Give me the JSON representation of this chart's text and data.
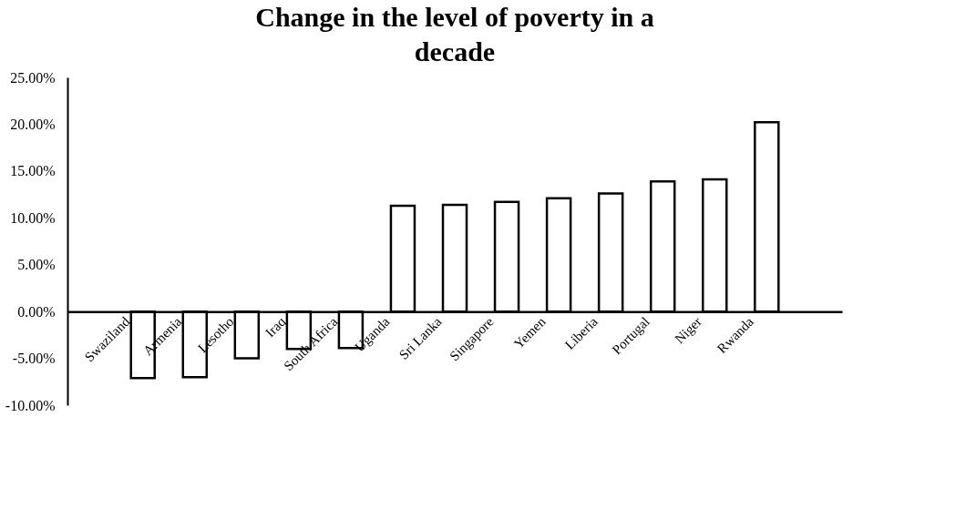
{
  "chart_data": {
    "type": "bar",
    "title": "Change in the level of poverty in a decade",
    "categories": [
      "Swaziland",
      "Armenia",
      "Lesotho",
      "Iraq",
      "South Africa",
      "Uganda",
      "Sri Lanka",
      "Singapore",
      "Yemen",
      "Liberia",
      "Portugal",
      "Niger",
      "Rwanda"
    ],
    "values": [
      -7.1,
      -7.0,
      -5.0,
      -4.0,
      -3.9,
      11.3,
      11.4,
      11.7,
      12.1,
      12.6,
      13.9,
      14.1,
      20.2
    ],
    "color": "#ffffff",
    "ylim": [
      -10,
      25
    ],
    "yticks": [
      {
        "value": -10,
        "label": "-10.00%"
      },
      {
        "value": -5,
        "label": "-5.00%"
      },
      {
        "value": 0,
        "label": "0.00%"
      },
      {
        "value": 5,
        "label": "5.00%"
      },
      {
        "value": 10,
        "label": "10.00%"
      },
      {
        "value": 15,
        "label": "15.00%"
      },
      {
        "value": 20,
        "label": "20.00%"
      },
      {
        "value": 25,
        "label": "25.00%"
      }
    ],
    "grid": false
  }
}
